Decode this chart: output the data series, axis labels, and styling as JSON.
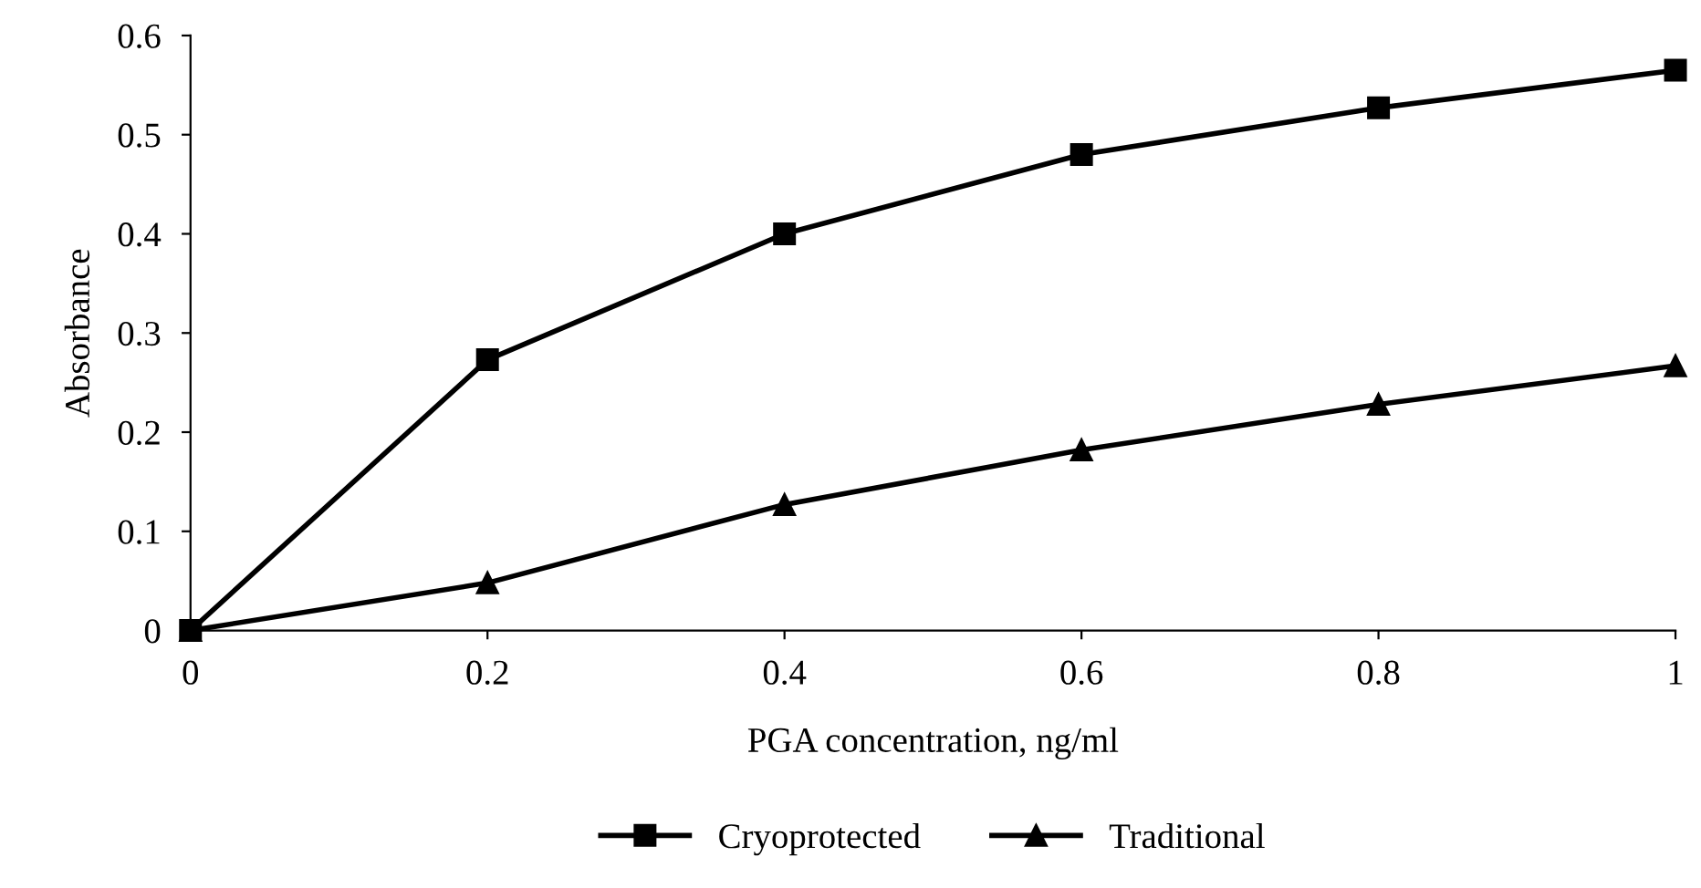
{
  "chart_data": {
    "type": "line",
    "xlabel": "PGA concentration, ng/ml",
    "ylabel": "Absorbance",
    "x": [
      0,
      0.2,
      0.4,
      0.6,
      0.8,
      1
    ],
    "series": [
      {
        "name": "Cryoprotected",
        "color": "#000000",
        "marker": "square",
        "values": [
          0,
          0.273,
          0.4,
          0.48,
          0.527,
          0.565
        ]
      },
      {
        "name": "Traditional",
        "color": "#000000",
        "marker": "triangle",
        "values": [
          0,
          0.048,
          0.127,
          0.182,
          0.228,
          0.267
        ]
      }
    ],
    "xlim": [
      0,
      1
    ],
    "xticks": [
      0,
      0.2,
      0.4,
      0.6,
      0.8,
      1
    ],
    "ylim": [
      0,
      0.6
    ],
    "yticks": [
      0,
      0.1,
      0.2,
      0.3,
      0.4,
      0.5,
      0.6
    ],
    "grid": false,
    "legend": "bottom",
    "line_style": "solid"
  }
}
